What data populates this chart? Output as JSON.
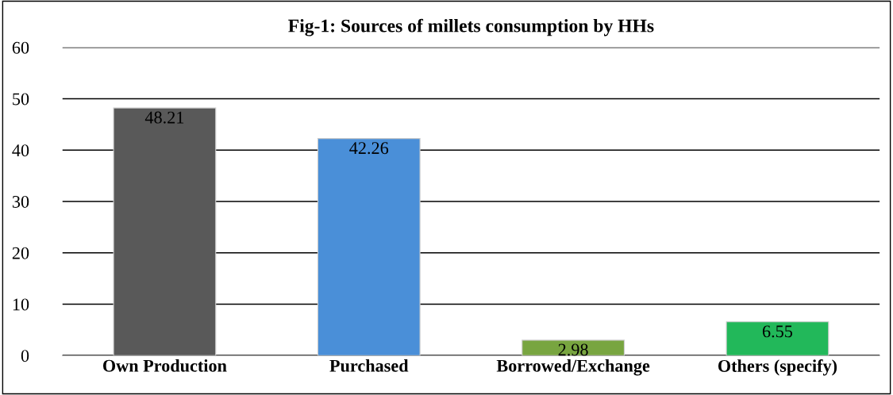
{
  "chart_data": {
    "type": "bar",
    "title": "Fig-1: Sources of millets consumption by HHs",
    "categories": [
      "Own Production",
      "Purchased",
      "Borrowed/Exchange",
      "Others (specify)"
    ],
    "values": [
      48.21,
      42.26,
      2.98,
      6.55
    ],
    "colors": [
      "#595959",
      "#4a8fd8",
      "#78a540",
      "#22b85a"
    ],
    "ylim": [
      0,
      60
    ],
    "yticks": [
      0,
      10,
      20,
      30,
      40,
      50,
      60
    ],
    "grid": "y",
    "data_labels": true
  }
}
